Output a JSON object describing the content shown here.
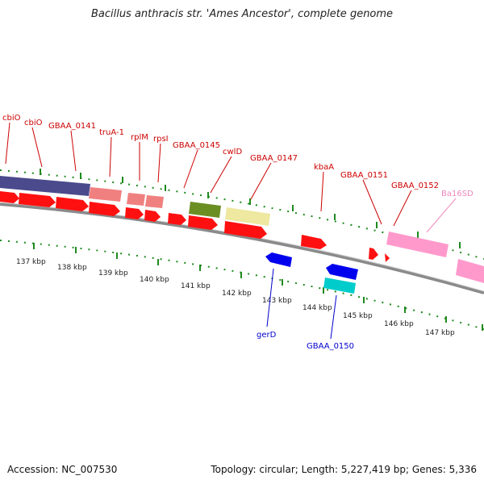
{
  "title": "Bacillus anthracis str. 'Ames Ancestor', complete genome",
  "footer": {
    "accession": "Accession: NC_007530",
    "summary": "Topology: circular; Length: 5,227,419 bp; Genes: 5,336"
  },
  "colors": {
    "backbone": "#8a8a8a",
    "tick": "#1f8a1f",
    "red_gene": "#ff1010",
    "red_label": "#cc0000",
    "blue_label": "#0000cc",
    "pink_label": "#ee88bb"
  },
  "scale_labels": [
    "137 kbp",
    "138 kbp",
    "139 kbp",
    "140 kbp",
    "141 kbp",
    "142 kbp",
    "143 kbp",
    "144 kbp",
    "145 kbp",
    "146 kbp",
    "147 kbp"
  ],
  "top_labels": [
    "cbiO",
    "cbiO",
    "GBAA_0141",
    "truA-1",
    "rplM",
    "rpsI",
    "GBAA_0145",
    "cwlD",
    "GBAA_0147",
    "kbaA",
    "GBAA_0151",
    "GBAA_0152",
    "Ba16SD"
  ],
  "bottom_labels": [
    "gerD",
    "GBAA_0150"
  ]
}
